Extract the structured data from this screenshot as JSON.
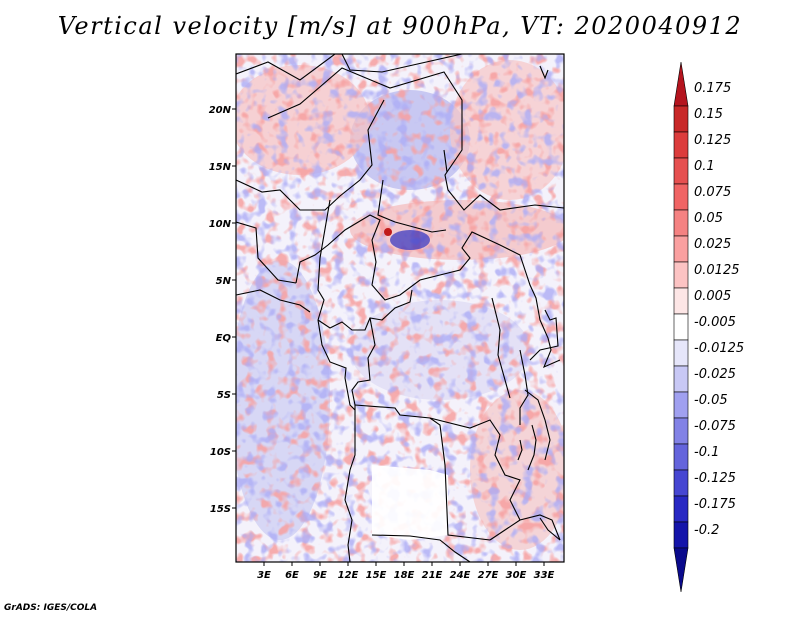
{
  "title": "Vertical velocity [m/s] at 900hPa, VT: 2020040912",
  "credit": "GrADS: IGES/COLA",
  "map": {
    "lat_labels": [
      "20N",
      "15N",
      "10N",
      "5N",
      "EQ",
      "5S",
      "10S",
      "15S"
    ],
    "lon_labels": [
      "3E",
      "6E",
      "9E",
      "12E",
      "15E",
      "18E",
      "21E",
      "24E",
      "27E",
      "30E",
      "33E"
    ]
  },
  "colorbar": {
    "labels": [
      "0.175",
      "0.15",
      "0.125",
      "0.1",
      "0.075",
      "0.05",
      "0.025",
      "0.0125",
      "0.005",
      "-0.005",
      "-0.0125",
      "-0.025",
      "-0.05",
      "-0.075",
      "-0.1",
      "-0.125",
      "-0.175",
      "-0.2"
    ],
    "colors": [
      "#b4141e",
      "#c82828",
      "#dc3c3c",
      "#e65050",
      "#f06464",
      "#f58282",
      "#faa0a0",
      "#fcc3c3",
      "#fde6e6",
      "#ffffff",
      "#e6e6fa",
      "#c8c8f5",
      "#a0a0f0",
      "#8282e6",
      "#6464dc",
      "#4646d2",
      "#2828c3",
      "#1414aa",
      "#0a0a8c"
    ]
  }
}
